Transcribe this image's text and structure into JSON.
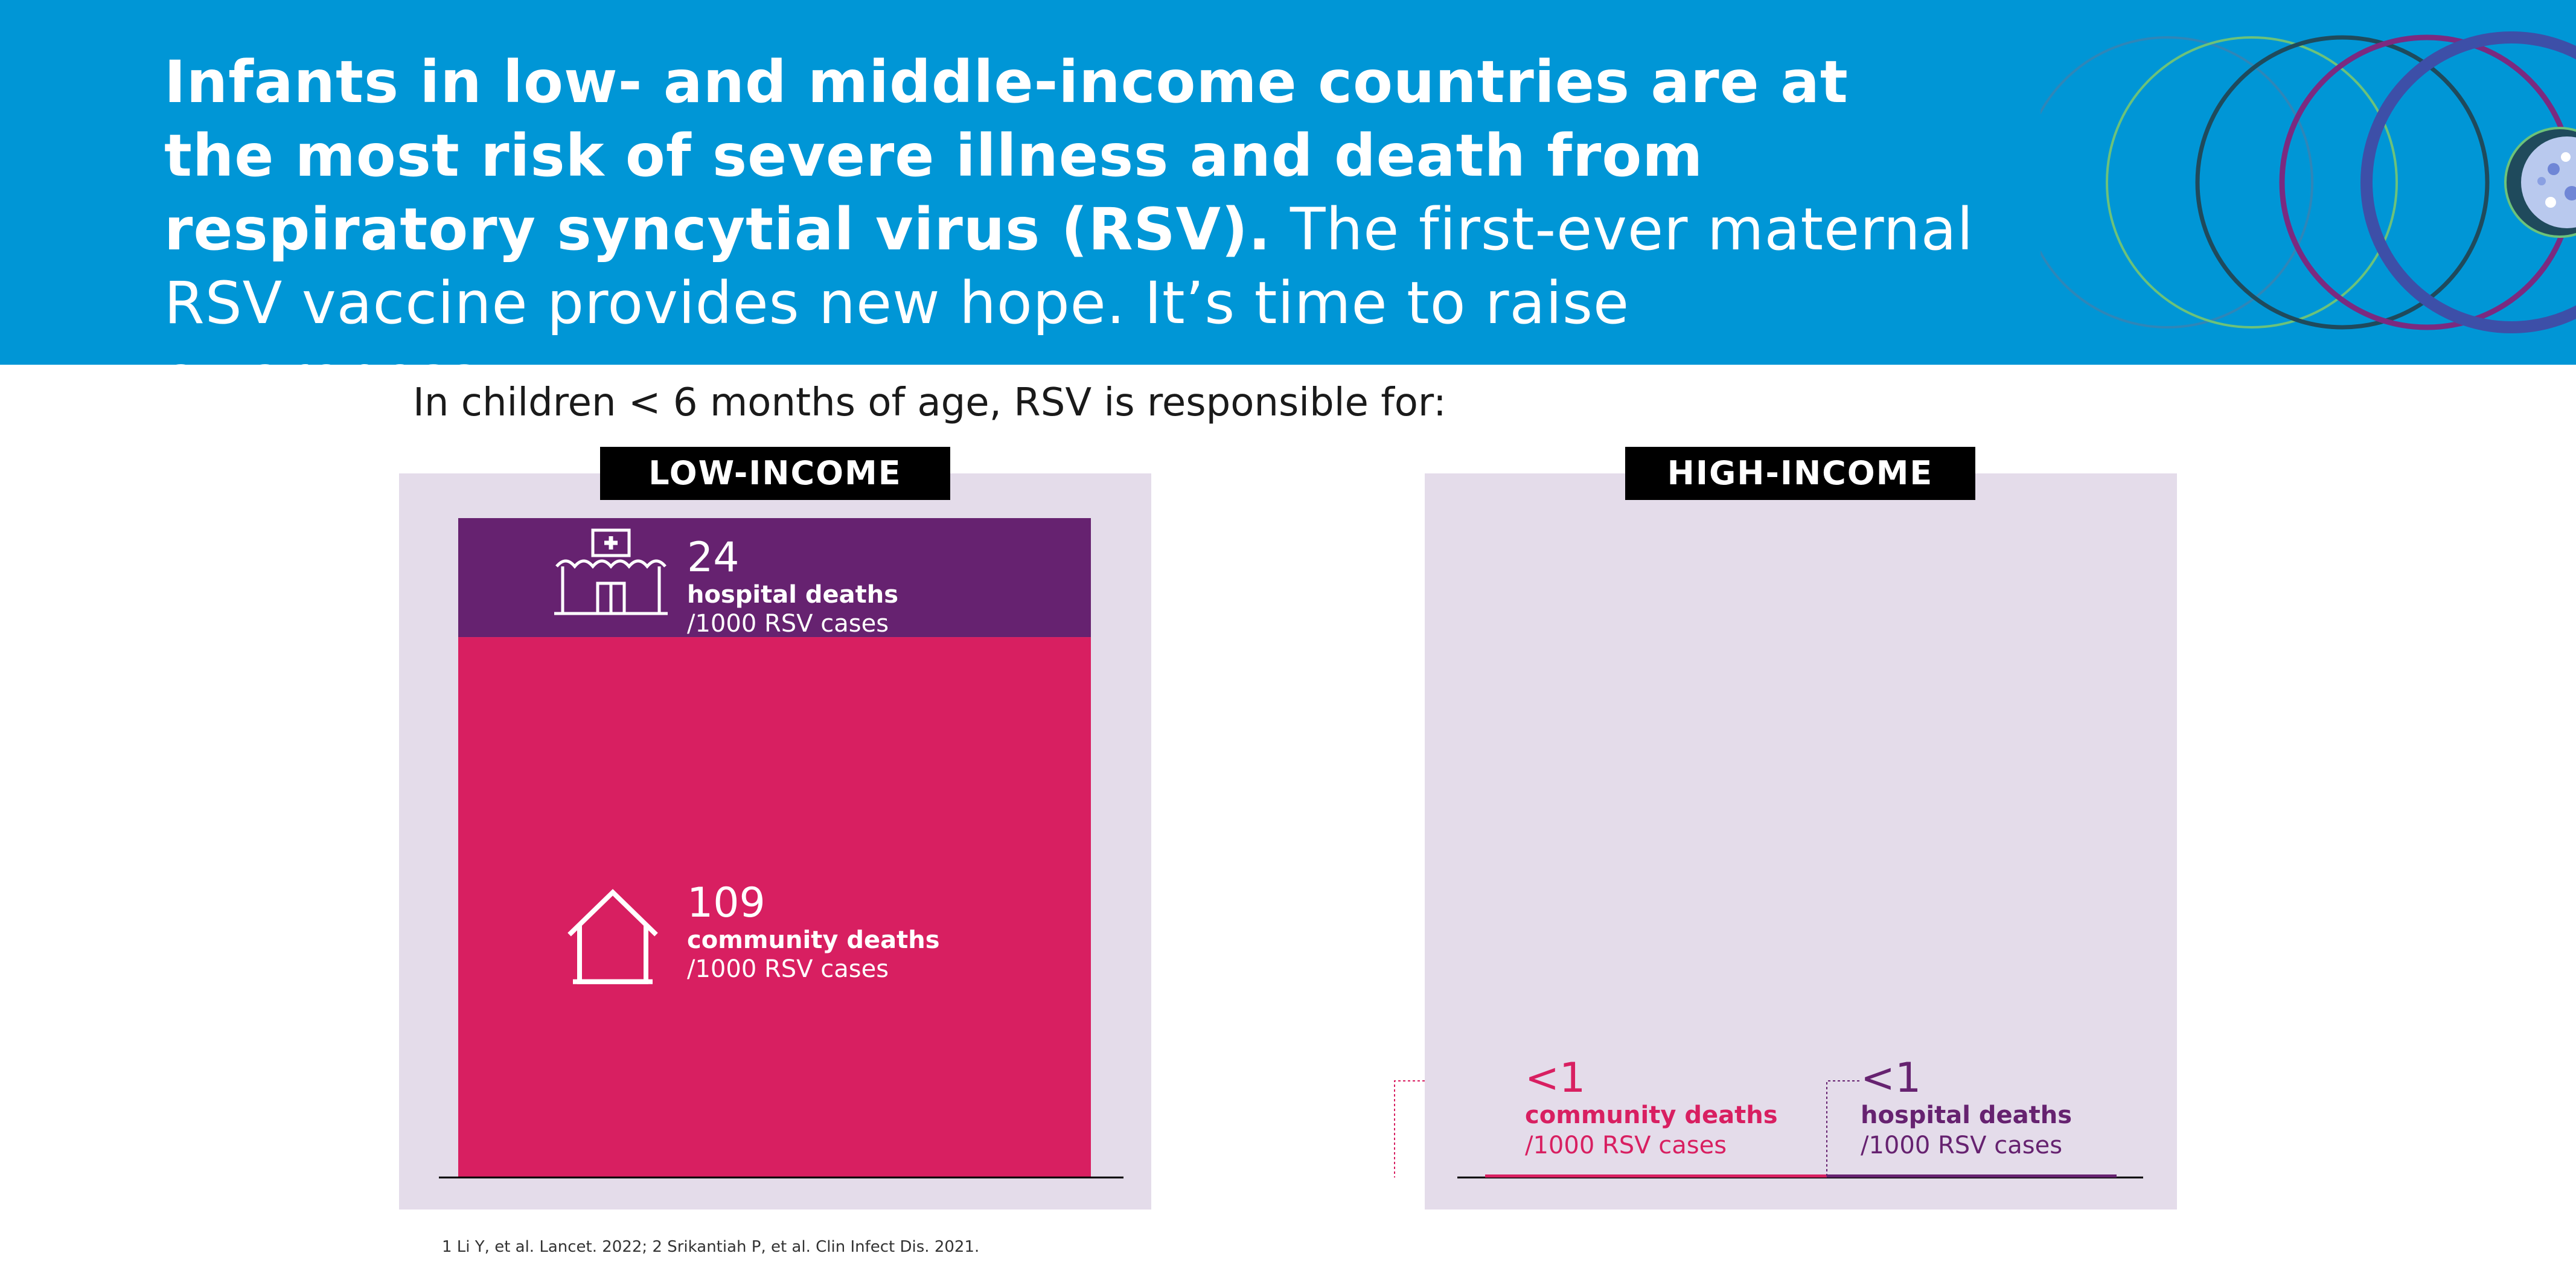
{
  "headline": {
    "bold": "Infants in low- and middle-income countries are at the most risk of severe illness and death from respiratory syncytial virus (RSV).",
    "regular": "The first-ever maternal RSV vaccine provides new hope. It’s time to raise awareness."
  },
  "intro": "In children < 6 months of age, RSV is responsible for:",
  "footnote": "1 Li Y, et al. Lancet. 2022; 2 Srikantiah P, et al. Clin Infect Dis. 2021.",
  "colors": {
    "banner": "#0096d6",
    "hospital": "#662270",
    "community": "#d81f61",
    "panel": "#e4dcea"
  },
  "chart_data": {
    "type": "bar",
    "title": "In children < 6 months of age, RSV is responsible for:",
    "unit": "deaths /1000 RSV cases",
    "ylim": [
      0,
      133
    ],
    "stacked": true,
    "groups": [
      {
        "label": "LOW-INCOME",
        "segments": [
          {
            "name": "community deaths",
            "display": "109",
            "value": 109,
            "unit": "/1000 RSV cases",
            "color": "#d81f61",
            "icon": "house-icon"
          },
          {
            "name": "hospital deaths",
            "display": "24",
            "value": 24,
            "unit": "/1000 RSV cases",
            "color": "#662270",
            "icon": "hospital-icon"
          }
        ]
      },
      {
        "label": "HIGH-INCOME",
        "segments": [
          {
            "name": "community deaths",
            "display": "<1",
            "value": 0.5,
            "unit": "/1000 RSV cases",
            "color": "#d81f61"
          },
          {
            "name": "hospital deaths",
            "display": "<1",
            "value": 0.5,
            "unit": "/1000 RSV cases",
            "color": "#662270"
          }
        ]
      }
    ]
  }
}
